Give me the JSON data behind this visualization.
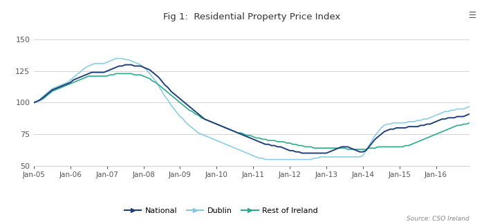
{
  "title": "Fig 1:  Residential Property Price Index",
  "source": "Source: CSO Ireland",
  "ylim": [
    50,
    160
  ],
  "yticks": [
    50,
    75,
    100,
    125,
    150
  ],
  "x_labels": [
    "Jan-05",
    "Jan-06",
    "Jan-07",
    "Jan-08",
    "Jan-09",
    "Jan-10",
    "Jan-11",
    "Jan-12",
    "Jan-13",
    "Jan-14",
    "Jan-15",
    "Jan-16"
  ],
  "background_color": "#ffffff",
  "grid_color": "#cccccc",
  "national_color": "#1f3f7a",
  "dublin_color": "#7ec8e3",
  "roi_color": "#2aaa8a",
  "national": [
    100,
    101,
    102,
    104,
    106,
    108,
    110,
    111,
    112,
    113,
    114,
    115,
    116,
    118,
    119,
    120,
    121,
    122,
    123,
    124,
    124,
    124,
    124,
    124,
    125,
    126,
    127,
    128,
    129,
    129,
    130,
    130,
    130,
    129,
    129,
    129,
    128,
    127,
    126,
    124,
    122,
    120,
    117,
    114,
    112,
    109,
    107,
    105,
    103,
    101,
    99,
    97,
    95,
    93,
    91,
    89,
    87,
    86,
    85,
    84,
    83,
    82,
    81,
    80,
    79,
    78,
    77,
    76,
    75,
    74,
    73,
    72,
    71,
    70,
    69,
    68,
    67,
    67,
    66,
    66,
    65,
    65,
    64,
    63,
    62,
    62,
    61,
    61,
    60,
    60,
    60,
    60,
    60,
    60,
    60,
    60,
    60,
    61,
    62,
    63,
    64,
    65,
    65,
    65,
    64,
    63,
    62,
    61,
    61,
    62,
    65,
    68,
    71,
    73,
    75,
    77,
    78,
    79,
    79,
    80,
    80,
    80,
    80,
    81,
    81,
    81,
    81,
    82,
    82,
    83,
    83,
    84,
    85,
    86,
    87,
    87,
    88,
    88,
    88,
    89,
    89,
    89,
    90,
    91
  ],
  "dublin": [
    100,
    101,
    103,
    105,
    107,
    109,
    111,
    112,
    113,
    114,
    115,
    116,
    118,
    120,
    122,
    124,
    126,
    128,
    129,
    130,
    131,
    131,
    131,
    131,
    132,
    133,
    134,
    135,
    135,
    135,
    134,
    134,
    133,
    132,
    131,
    130,
    128,
    126,
    123,
    120,
    117,
    113,
    109,
    105,
    102,
    98,
    95,
    92,
    89,
    87,
    84,
    82,
    80,
    78,
    76,
    75,
    74,
    73,
    72,
    71,
    70,
    69,
    68,
    67,
    66,
    65,
    64,
    63,
    62,
    61,
    60,
    59,
    58,
    57,
    56,
    56,
    55,
    55,
    55,
    55,
    55,
    55,
    55,
    55,
    55,
    55,
    55,
    55,
    55,
    55,
    55,
    55,
    56,
    56,
    57,
    57,
    57,
    57,
    57,
    57,
    57,
    57,
    57,
    57,
    57,
    57,
    57,
    57,
    58,
    62,
    66,
    70,
    74,
    77,
    80,
    82,
    83,
    83,
    84,
    84,
    84,
    84,
    84,
    85,
    85,
    85,
    86,
    86,
    87,
    87,
    88,
    89,
    90,
    91,
    92,
    93,
    93,
    94,
    94,
    95,
    95,
    95,
    96,
    97
  ],
  "rest_of_ireland": [
    100,
    101,
    102,
    103,
    105,
    107,
    109,
    110,
    111,
    112,
    113,
    114,
    115,
    116,
    117,
    118,
    119,
    120,
    121,
    121,
    121,
    121,
    121,
    121,
    121,
    122,
    122,
    123,
    123,
    123,
    123,
    123,
    123,
    122,
    122,
    122,
    121,
    120,
    119,
    117,
    116,
    114,
    112,
    110,
    108,
    106,
    104,
    102,
    100,
    98,
    96,
    94,
    93,
    91,
    90,
    88,
    87,
    86,
    85,
    84,
    83,
    82,
    81,
    80,
    79,
    78,
    77,
    76,
    76,
    75,
    74,
    74,
    73,
    72,
    72,
    71,
    71,
    70,
    70,
    70,
    69,
    69,
    69,
    68,
    68,
    67,
    67,
    66,
    66,
    65,
    65,
    65,
    64,
    64,
    64,
    64,
    64,
    64,
    64,
    64,
    64,
    64,
    64,
    63,
    63,
    63,
    63,
    63,
    63,
    63,
    64,
    64,
    64,
    65,
    65,
    65,
    65,
    65,
    65,
    65,
    65,
    65,
    66,
    66,
    67,
    68,
    69,
    70,
    71,
    72,
    73,
    74,
    75,
    76,
    77,
    78,
    79,
    80,
    81,
    82,
    82,
    83,
    83,
    84
  ],
  "legend_labels": [
    "National",
    "Dublin",
    "Rest of Ireland"
  ]
}
